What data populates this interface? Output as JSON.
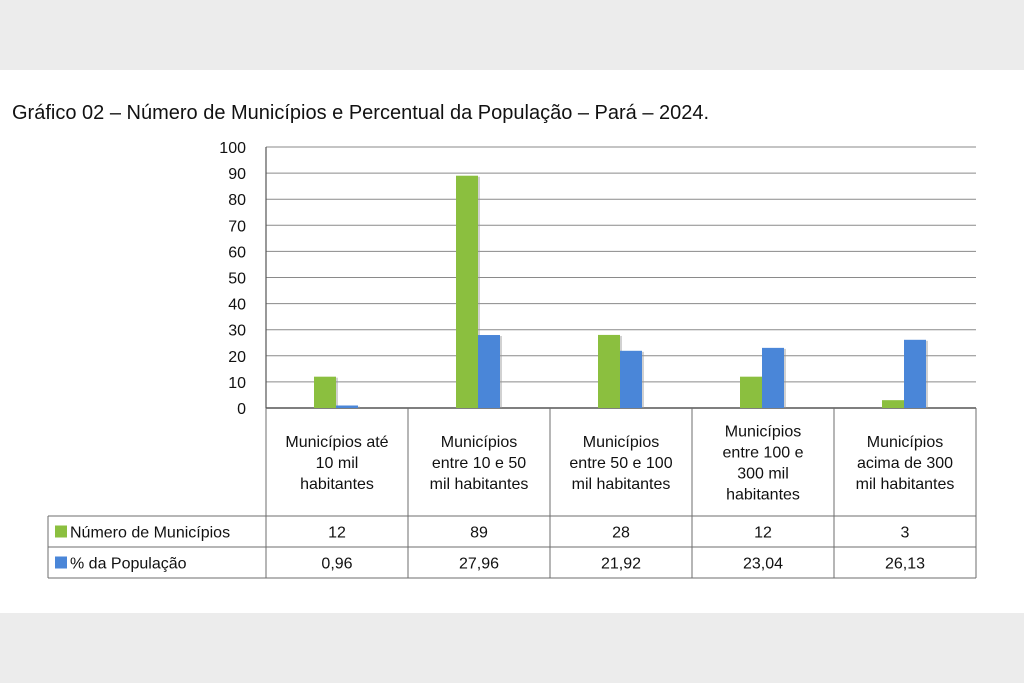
{
  "chart_data": {
    "type": "bar",
    "title": "Gráfico 02 – Número de Municípios e Percentual da População – Pará – 2024.",
    "categories": [
      [
        "Municípios até",
        "10 mil",
        "habitantes"
      ],
      [
        "Municípios",
        "entre 10 e 50",
        "mil habitantes"
      ],
      [
        "Municípios",
        "entre 50 e 100",
        "mil habitantes"
      ],
      [
        "Municípios",
        "entre 100 e",
        "300 mil",
        "habitantes"
      ],
      [
        "Municípios",
        "acima de 300",
        "mil habitantes"
      ]
    ],
    "series": [
      {
        "name": "Número de Municípios",
        "color": "#8bbf3f",
        "values": [
          12,
          89,
          28,
          12,
          3
        ],
        "labels": [
          "12",
          "89",
          "28",
          "12",
          "3"
        ]
      },
      {
        "name": "% da População",
        "color": "#4a86d8",
        "values": [
          0.96,
          27.96,
          21.92,
          23.04,
          26.13
        ],
        "labels": [
          "0,96",
          "27,96",
          "21,92",
          "23,04",
          "26,13"
        ]
      }
    ],
    "ylim": [
      0,
      100
    ],
    "yticks": [
      0,
      10,
      20,
      30,
      40,
      50,
      60,
      70,
      80,
      90,
      100
    ],
    "grid": true,
    "legend": "data-table"
  }
}
